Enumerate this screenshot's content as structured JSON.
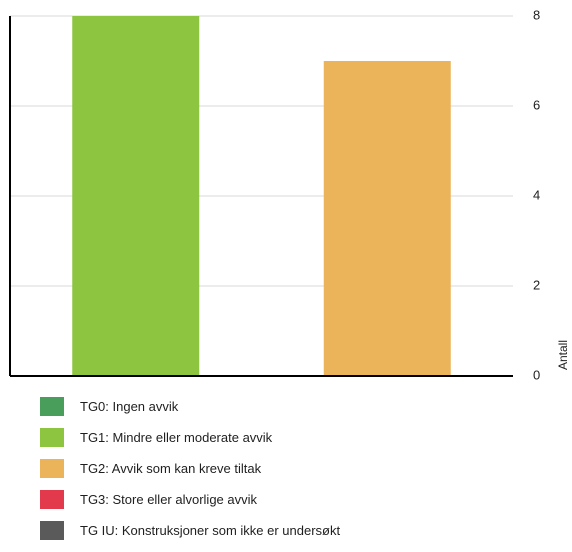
{
  "chart_data": {
    "type": "bar",
    "categories": [
      "TG1: Mindre eller moderate avvik",
      "TG2: Avvik som kan kreve tiltak"
    ],
    "values": [
      8,
      7
    ],
    "bar_colors": [
      "#8dc540",
      "#ecb45a"
    ],
    "ylabel": "Antall",
    "ylim": [
      0,
      8
    ],
    "yticks": [
      0,
      2,
      4,
      6,
      8
    ],
    "y_axis_side": "right",
    "grid": true
  },
  "legend": [
    {
      "label": "TG0: Ingen avvik",
      "color": "#4a9e5c"
    },
    {
      "label": "TG1: Mindre eller moderate avvik",
      "color": "#8dc540"
    },
    {
      "label": "TG2: Avvik som kan kreve tiltak",
      "color": "#ecb45a"
    },
    {
      "label": "TG3: Store eller alvorlige avvik",
      "color": "#e3394d"
    },
    {
      "label": "TG IU: Konstruksjoner som ikke er undersøkt",
      "color": "#5a5a5a"
    }
  ]
}
